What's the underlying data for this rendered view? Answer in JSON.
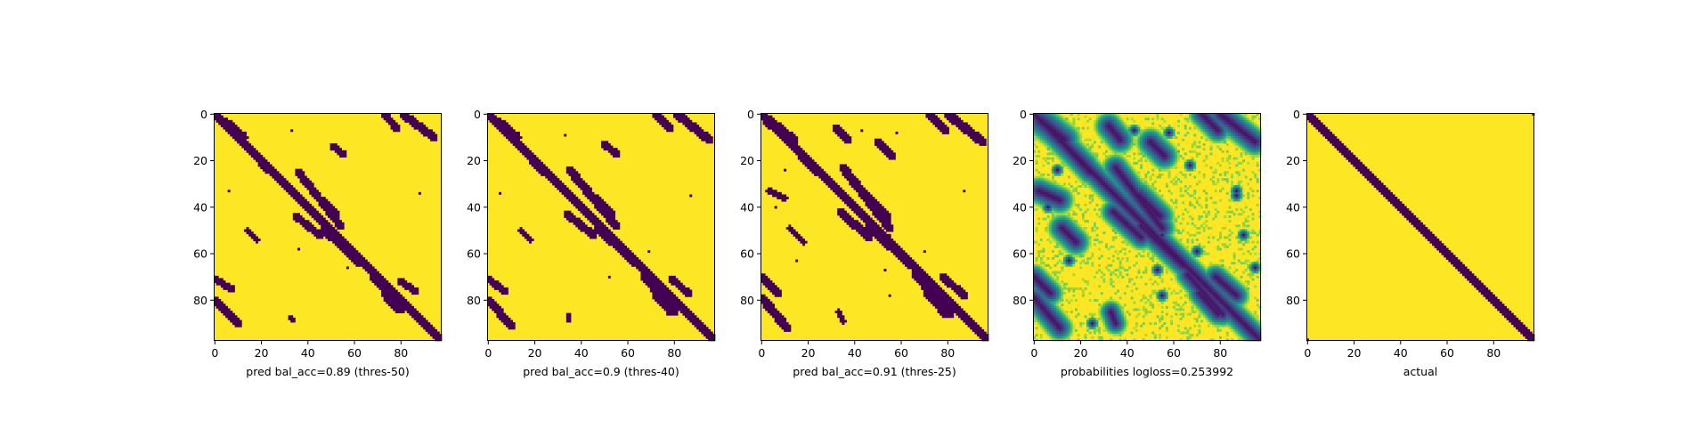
{
  "figure": {
    "colors": {
      "low": "#440154",
      "high": "#fde725",
      "colormap": "viridis",
      "axis": "#000000"
    }
  },
  "chart_data": [
    {
      "type": "heatmap",
      "title": "",
      "xlabel": "pred bal_acc=0.89 (thres-50)",
      "ylabel": "",
      "xlim": [
        0,
        97
      ],
      "ylim": [
        97,
        0
      ],
      "x_ticks": [
        "0",
        "20",
        "40",
        "60",
        "80"
      ],
      "y_ticks": [
        "0",
        "20",
        "40",
        "60",
        "80"
      ],
      "grid_size": 98,
      "binary": true,
      "diagonal_band": [
        {
          "x0": 0,
          "y0": 0,
          "x1": 97,
          "y1": 97,
          "width": 1.6
        }
      ],
      "blobs": [
        {
          "x": [
            5,
            12
          ],
          "y": [
            4,
            10
          ],
          "w": 2.2
        },
        {
          "x": [
            8,
            22
          ],
          "y": [
            8,
            22
          ],
          "w": 1.8
        },
        {
          "x": [
            10,
            23
          ],
          "y": [
            10,
            24
          ],
          "w": 1.6
        },
        {
          "x": [
            73,
            78
          ],
          "y": [
            0,
            6
          ],
          "w": 1.6
        },
        {
          "x": [
            81,
            94
          ],
          "y": [
            0,
            10
          ],
          "w": 1.8
        },
        {
          "x": [
            51,
            55
          ],
          "y": [
            14,
            17
          ],
          "w": 1.5
        },
        {
          "x": [
            36,
            54
          ],
          "y": [
            25,
            48
          ],
          "w": 1.7
        },
        {
          "x": [
            46,
            52
          ],
          "y": [
            37,
            43
          ],
          "w": 1.8
        },
        {
          "x": [
            35,
            45
          ],
          "y": [
            44,
            52
          ],
          "w": 1.6
        },
        {
          "x": [
            14,
            18
          ],
          "y": [
            50,
            54
          ],
          "w": 1.2
        },
        {
          "x": [
            47,
            62
          ],
          "y": [
            50,
            64
          ],
          "w": 1.6
        },
        {
          "x": [
            0,
            7
          ],
          "y": [
            71,
            75
          ],
          "w": 1.5
        },
        {
          "x": [
            68,
            80
          ],
          "y": [
            70,
            84
          ],
          "w": 1.6
        },
        {
          "x": [
            80,
            86
          ],
          "y": [
            72,
            76
          ],
          "w": 1.5
        },
        {
          "x": [
            73,
            78
          ],
          "y": [
            78,
            84
          ],
          "w": 1.4
        },
        {
          "x": [
            0,
            10
          ],
          "y": [
            80,
            90
          ],
          "w": 1.7
        },
        {
          "x": [
            32,
            34
          ],
          "y": [
            87,
            89
          ],
          "w": 1.0
        }
      ],
      "dots": [
        [
          33,
          7
        ],
        [
          6,
          33
        ],
        [
          88,
          34
        ],
        [
          36,
          58
        ],
        [
          57,
          66
        ]
      ]
    },
    {
      "type": "heatmap",
      "title": "",
      "xlabel": "pred bal_acc=0.9 (thres-40)",
      "ylabel": "",
      "xlim": [
        0,
        97
      ],
      "ylim": [
        97,
        0
      ],
      "x_ticks": [
        "0",
        "20",
        "40",
        "60",
        "80"
      ],
      "y_ticks": [
        "0",
        "20",
        "40",
        "60",
        "80"
      ],
      "grid_size": 98,
      "binary": true,
      "diagonal_band": [
        {
          "x0": 0,
          "y0": 0,
          "x1": 97,
          "y1": 97,
          "width": 1.8
        }
      ],
      "blobs": [
        {
          "x": [
            5,
            12
          ],
          "y": [
            4,
            10
          ],
          "w": 2.2
        },
        {
          "x": [
            8,
            22
          ],
          "y": [
            8,
            22
          ],
          "w": 1.9
        },
        {
          "x": [
            10,
            24
          ],
          "y": [
            10,
            25
          ],
          "w": 1.7
        },
        {
          "x": [
            72,
            78
          ],
          "y": [
            0,
            6
          ],
          "w": 1.7
        },
        {
          "x": [
            81,
            95
          ],
          "y": [
            0,
            11
          ],
          "w": 1.9
        },
        {
          "x": [
            50,
            55
          ],
          "y": [
            13,
            17
          ],
          "w": 1.6
        },
        {
          "x": [
            35,
            55
          ],
          "y": [
            24,
            48
          ],
          "w": 1.8
        },
        {
          "x": [
            46,
            53
          ],
          "y": [
            36,
            43
          ],
          "w": 1.9
        },
        {
          "x": [
            34,
            45
          ],
          "y": [
            43,
            52
          ],
          "w": 1.7
        },
        {
          "x": [
            14,
            18
          ],
          "y": [
            50,
            54
          ],
          "w": 1.3
        },
        {
          "x": [
            47,
            63
          ],
          "y": [
            49,
            64
          ],
          "w": 1.7
        },
        {
          "x": [
            0,
            7
          ],
          "y": [
            71,
            76
          ],
          "w": 1.6
        },
        {
          "x": [
            67,
            80
          ],
          "y": [
            70,
            85
          ],
          "w": 1.7
        },
        {
          "x": [
            79,
            86
          ],
          "y": [
            71,
            77
          ],
          "w": 1.6
        },
        {
          "x": [
            72,
            78
          ],
          "y": [
            78,
            85
          ],
          "w": 1.5
        },
        {
          "x": [
            0,
            10
          ],
          "y": [
            80,
            91
          ],
          "w": 1.8
        },
        {
          "x": [
            34,
            35
          ],
          "y": [
            86,
            89
          ],
          "w": 1.0
        }
      ],
      "dots": [
        [
          33,
          9
        ],
        [
          5,
          34
        ],
        [
          87,
          35
        ],
        [
          69,
          59
        ],
        [
          52,
          70
        ],
        [
          55,
          54
        ]
      ]
    },
    {
      "type": "heatmap",
      "title": "",
      "xlabel": "pred bal_acc=0.91 (thres-25)",
      "ylabel": "",
      "xlim": [
        0,
        97
      ],
      "ylim": [
        97,
        0
      ],
      "x_ticks": [
        "0",
        "20",
        "40",
        "60",
        "80"
      ],
      "y_ticks": [
        "0",
        "20",
        "40",
        "60",
        "80"
      ],
      "grid_size": 98,
      "binary": true,
      "diagonal_band": [
        {
          "x0": 0,
          "y0": 0,
          "x1": 97,
          "y1": 97,
          "width": 2.0
        }
      ],
      "blobs": [
        {
          "x": [
            3,
            13
          ],
          "y": [
            3,
            11
          ],
          "w": 2.4
        },
        {
          "x": [
            8,
            22
          ],
          "y": [
            8,
            22
          ],
          "w": 2.0
        },
        {
          "x": [
            10,
            24
          ],
          "y": [
            10,
            25
          ],
          "w": 1.8
        },
        {
          "x": [
            72,
            79
          ],
          "y": [
            0,
            7
          ],
          "w": 1.8
        },
        {
          "x": [
            80,
            95
          ],
          "y": [
            0,
            12
          ],
          "w": 2.0
        },
        {
          "x": [
            32,
            37
          ],
          "y": [
            6,
            11
          ],
          "w": 1.5
        },
        {
          "x": [
            50,
            56
          ],
          "y": [
            12,
            18
          ],
          "w": 1.7
        },
        {
          "x": [
            35,
            55
          ],
          "y": [
            23,
            49
          ],
          "w": 1.9
        },
        {
          "x": [
            45,
            54
          ],
          "y": [
            35,
            44
          ],
          "w": 2.0
        },
        {
          "x": [
            3,
            10
          ],
          "y": [
            33,
            36
          ],
          "w": 1.4
        },
        {
          "x": [
            34,
            46
          ],
          "y": [
            42,
            53
          ],
          "w": 1.8
        },
        {
          "x": [
            12,
            18
          ],
          "y": [
            49,
            55
          ],
          "w": 1.4
        },
        {
          "x": [
            46,
            64
          ],
          "y": [
            48,
            65
          ],
          "w": 1.8
        },
        {
          "x": [
            0,
            7
          ],
          "y": [
            70,
            77
          ],
          "w": 1.7
        },
        {
          "x": [
            66,
            81
          ],
          "y": [
            69,
            86
          ],
          "w": 1.8
        },
        {
          "x": [
            78,
            87
          ],
          "y": [
            70,
            78
          ],
          "w": 1.7
        },
        {
          "x": [
            71,
            79
          ],
          "y": [
            77,
            86
          ],
          "w": 1.6
        },
        {
          "x": [
            0,
            11
          ],
          "y": [
            79,
            92
          ],
          "w": 1.9
        },
        {
          "x": [
            33,
            35
          ],
          "y": [
            85,
            89
          ],
          "w": 1.2
        }
      ],
      "dots": [
        [
          58,
          8
        ],
        [
          6,
          40
        ],
        [
          87,
          33
        ],
        [
          70,
          59
        ],
        [
          15,
          63
        ],
        [
          55,
          52
        ],
        [
          53,
          67
        ],
        [
          55,
          78
        ],
        [
          10,
          24
        ],
        [
          43,
          7
        ]
      ]
    },
    {
      "type": "heatmap",
      "title": "",
      "xlabel": "probabilities logloss=0.253992",
      "ylabel": "",
      "xlim": [
        0,
        97
      ],
      "ylim": [
        97,
        0
      ],
      "x_ticks": [
        "0",
        "20",
        "40",
        "60",
        "80"
      ],
      "y_ticks": [
        "0",
        "20",
        "40",
        "60",
        "80"
      ],
      "grid_size": 98,
      "binary": false,
      "diagonal_band": [
        {
          "x0": 0,
          "y0": 0,
          "x1": 97,
          "y1": 97,
          "width": 2.0
        }
      ],
      "blobs": [
        {
          "x": [
            3,
            13
          ],
          "y": [
            3,
            11
          ],
          "w": 2.6
        },
        {
          "x": [
            8,
            22
          ],
          "y": [
            8,
            22
          ],
          "w": 2.2
        },
        {
          "x": [
            10,
            24
          ],
          "y": [
            10,
            25
          ],
          "w": 2.0
        },
        {
          "x": [
            72,
            79
          ],
          "y": [
            0,
            7
          ],
          "w": 2.0
        },
        {
          "x": [
            80,
            95
          ],
          "y": [
            0,
            12
          ],
          "w": 2.2
        },
        {
          "x": [
            32,
            37
          ],
          "y": [
            5,
            11
          ],
          "w": 2.2
        },
        {
          "x": [
            50,
            56
          ],
          "y": [
            12,
            18
          ],
          "w": 2.2
        },
        {
          "x": [
            35,
            55
          ],
          "y": [
            23,
            49
          ],
          "w": 2.1
        },
        {
          "x": [
            45,
            54
          ],
          "y": [
            35,
            44
          ],
          "w": 2.3
        },
        {
          "x": [
            2,
            11
          ],
          "y": [
            33,
            37
          ],
          "w": 2.2
        },
        {
          "x": [
            34,
            46
          ],
          "y": [
            42,
            53
          ],
          "w": 2.0
        },
        {
          "x": [
            12,
            18
          ],
          "y": [
            49,
            55
          ],
          "w": 2.2
        },
        {
          "x": [
            46,
            64
          ],
          "y": [
            48,
            65
          ],
          "w": 2.0
        },
        {
          "x": [
            0,
            7
          ],
          "y": [
            70,
            77
          ],
          "w": 2.0
        },
        {
          "x": [
            66,
            81
          ],
          "y": [
            69,
            86
          ],
          "w": 2.0
        },
        {
          "x": [
            78,
            87
          ],
          "y": [
            70,
            78
          ],
          "w": 2.0
        },
        {
          "x": [
            71,
            79
          ],
          "y": [
            77,
            86
          ],
          "w": 1.9
        },
        {
          "x": [
            0,
            11
          ],
          "y": [
            79,
            92
          ],
          "w": 2.1
        },
        {
          "x": [
            33,
            35
          ],
          "y": [
            85,
            90
          ],
          "w": 1.8
        }
      ],
      "dots": [
        [
          58,
          8
        ],
        [
          6,
          40
        ],
        [
          87,
          33
        ],
        [
          70,
          59
        ],
        [
          15,
          63
        ],
        [
          55,
          52
        ],
        [
          53,
          67
        ],
        [
          55,
          78
        ],
        [
          10,
          24
        ],
        [
          43,
          7
        ],
        [
          87,
          35
        ],
        [
          90,
          52
        ],
        [
          67,
          22
        ],
        [
          25,
          90
        ],
        [
          95,
          66
        ]
      ]
    },
    {
      "type": "heatmap",
      "title": "",
      "xlabel": "actual",
      "ylabel": "",
      "xlim": [
        0,
        97
      ],
      "ylim": [
        97,
        0
      ],
      "x_ticks": [
        "0",
        "20",
        "40",
        "60",
        "80"
      ],
      "y_ticks": [
        "0",
        "20",
        "40",
        "60",
        "80"
      ],
      "grid_size": 98,
      "binary": true,
      "diagonal_band": [
        {
          "x0": 0,
          "y0": 0,
          "x1": 97,
          "y1": 97,
          "width": 1.6
        }
      ],
      "blobs": [],
      "dots": [
        [
          97,
          0
        ],
        [
          0,
          97
        ]
      ]
    }
  ]
}
